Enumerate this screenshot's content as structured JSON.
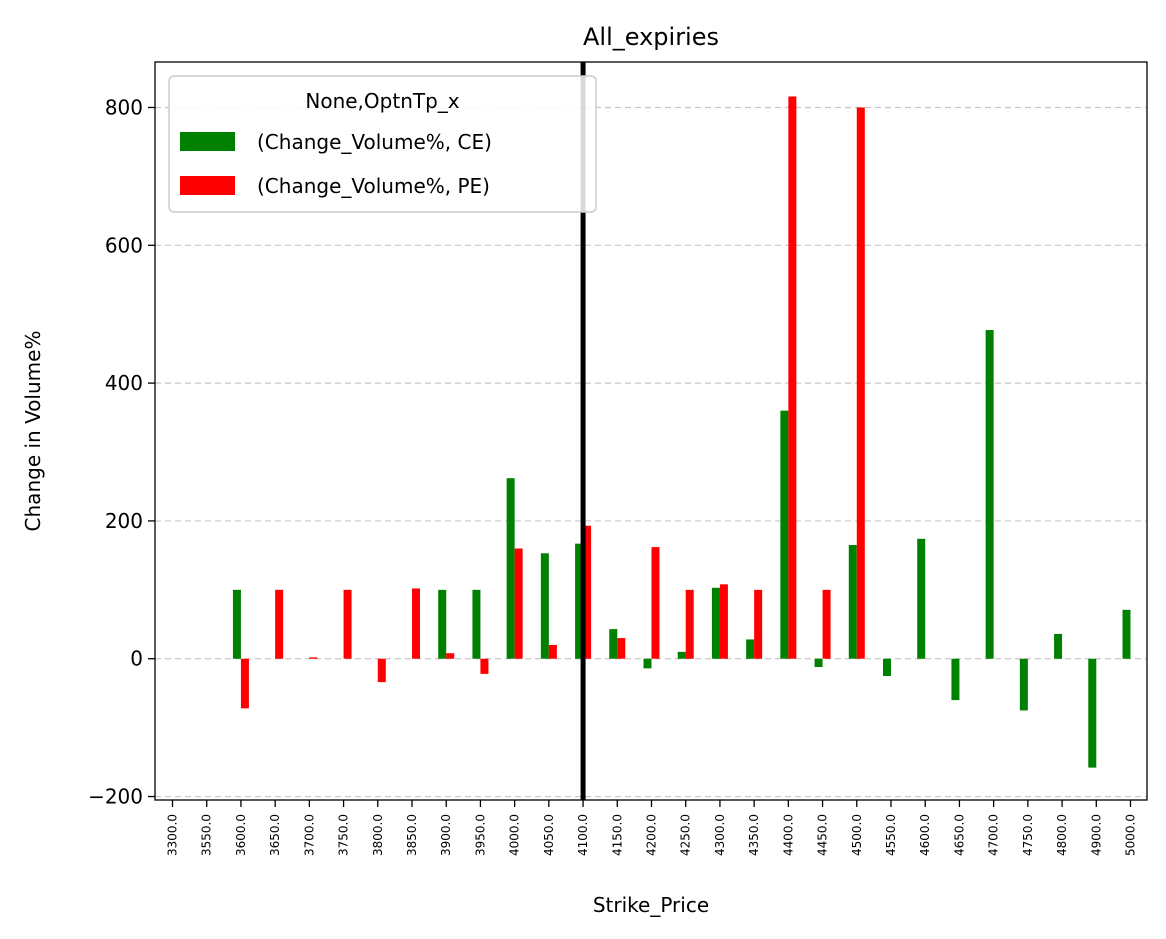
{
  "chart_data": {
    "type": "bar",
    "title": "All_expiries",
    "xlabel": "Strike_Price",
    "ylabel": "Change in Volume%",
    "ylim": [
      -205,
      866
    ],
    "yticks": [
      -200,
      0,
      200,
      400,
      600,
      800
    ],
    "ytick_labels": [
      "−200",
      "0",
      "200",
      "400",
      "600",
      "800"
    ],
    "grid": "y-dashed",
    "categories": [
      "3300.0",
      "3550.0",
      "3600.0",
      "3650.0",
      "3700.0",
      "3750.0",
      "3800.0",
      "3850.0",
      "3900.0",
      "3950.0",
      "4000.0",
      "4050.0",
      "4100.0",
      "4150.0",
      "4200.0",
      "4250.0",
      "4300.0",
      "4350.0",
      "4400.0",
      "4450.0",
      "4500.0",
      "4550.0",
      "4600.0",
      "4650.0",
      "4700.0",
      "4750.0",
      "4800.0",
      "4900.0",
      "5000.0"
    ],
    "legend": {
      "title": "None,OptnTp_x",
      "placement": "top-left"
    },
    "series": [
      {
        "name": "(Change_Volume%, CE)",
        "color": "#008000",
        "values": [
          0,
          0,
          100,
          0,
          0,
          0,
          0,
          0,
          100,
          100,
          262,
          153,
          167,
          43,
          -14,
          10,
          103,
          28,
          360,
          -12,
          165,
          -25,
          174,
          -60,
          477,
          -75,
          36,
          -158,
          71
        ]
      },
      {
        "name": "(Change_Volume%, PE)",
        "color": "#ff0000",
        "values": [
          0,
          0,
          -72,
          100,
          2,
          100,
          -34,
          102,
          8,
          -22,
          160,
          20,
          193,
          30,
          162,
          100,
          108,
          100,
          816,
          100,
          800,
          0,
          0,
          0,
          0,
          0,
          0,
          0,
          0
        ]
      }
    ],
    "vline": {
      "category": "4100.0",
      "color": "#000000"
    }
  }
}
